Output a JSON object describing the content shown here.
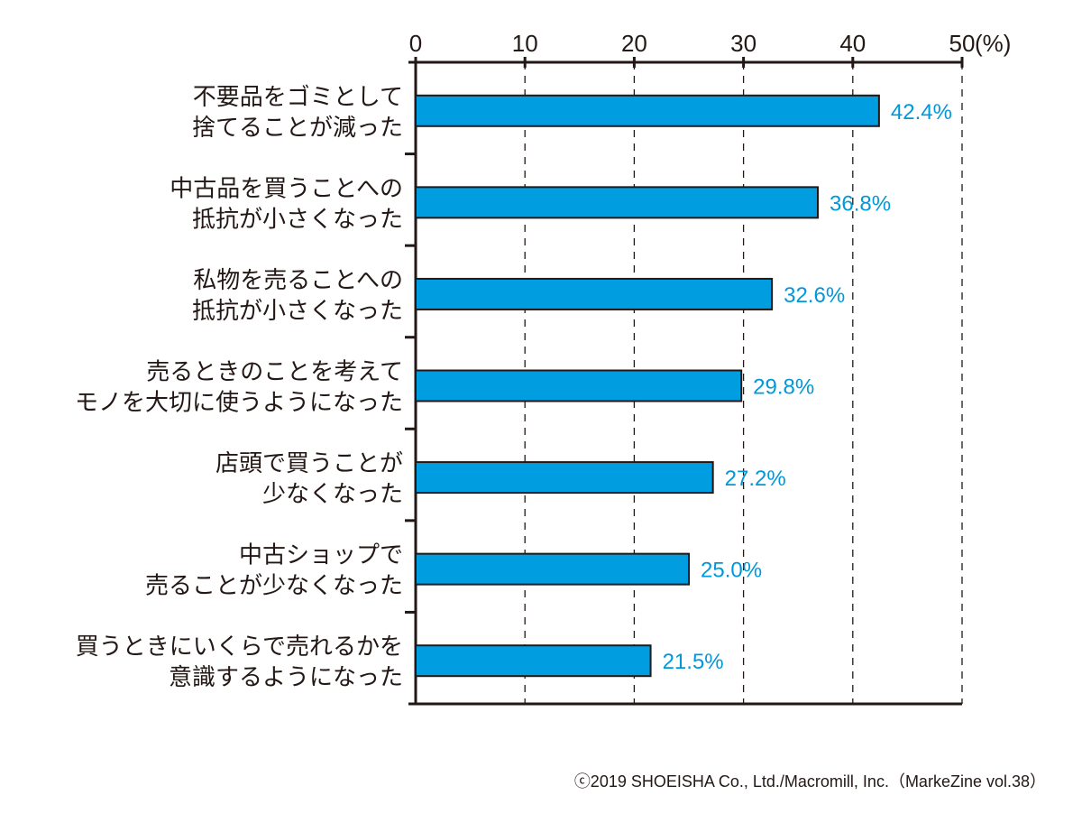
{
  "chart_data": {
    "type": "bar",
    "orientation": "horizontal",
    "title": "",
    "xlabel": "",
    "ylabel": "",
    "unit_label": "(%)",
    "xlim": [
      0,
      50
    ],
    "xticks": [
      0,
      10,
      20,
      30,
      40,
      50
    ],
    "tick_labels": [
      "0",
      "10",
      "20",
      "30",
      "40",
      "50"
    ],
    "grid": "vertical-dashed",
    "bar_color": "#009de0",
    "label_color": "#0098d9",
    "categories": [
      [
        "不要品をゴミとして",
        "捨てることが減った"
      ],
      [
        "中古品を買うことへの",
        "抵抗が小さくなった"
      ],
      [
        "私物を売ることへの",
        "抵抗が小さくなった"
      ],
      [
        "売るときのことを考えて",
        "モノを大切に使うようになった"
      ],
      [
        "店頭で買うことが",
        "少なくなった"
      ],
      [
        "中古ショップで",
        "売ることが少なくなった"
      ],
      [
        "買うときにいくらで売れるかを",
        "意識するようになった"
      ]
    ],
    "values": [
      42.4,
      36.8,
      32.6,
      29.8,
      27.2,
      25.0,
      21.5
    ],
    "value_labels": [
      "42.4%",
      "36.8%",
      "32.6%",
      "29.8%",
      "27.2%",
      "25.0%",
      "21.5%"
    ]
  },
  "footer": "ⓒ2019 SHOEISHA Co., Ltd./Macromill, Inc.（MarkeZine vol.38）"
}
